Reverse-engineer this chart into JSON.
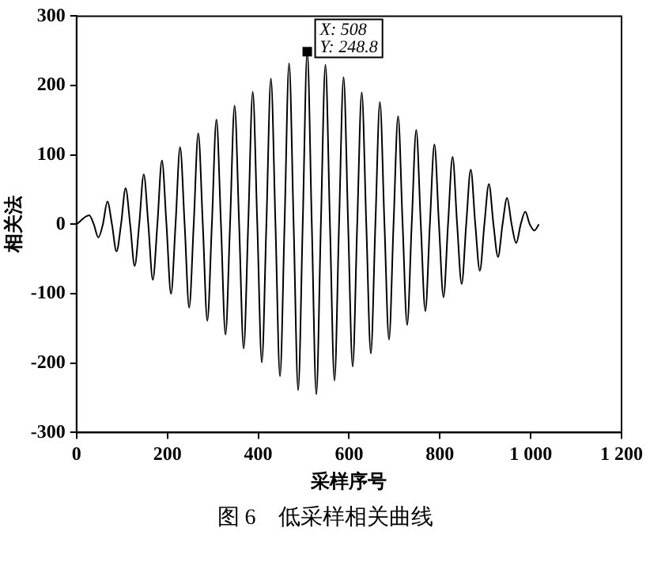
{
  "chart_data": {
    "type": "line",
    "title": "图 6　低采样相关曲线",
    "xlabel": "采样序号",
    "ylabel": "相关法",
    "x": [
      0,
      28,
      38,
      48,
      58,
      68,
      78,
      88,
      98,
      108,
      118,
      128,
      138,
      148,
      158,
      168,
      178,
      188,
      198,
      208,
      218,
      228,
      238,
      248,
      258,
      268,
      278,
      288,
      298,
      308,
      318,
      328,
      338,
      348,
      358,
      368,
      378,
      388,
      398,
      408,
      418,
      428,
      438,
      448,
      458,
      468,
      478,
      488,
      498,
      508,
      518,
      528,
      538,
      548,
      558,
      568,
      578,
      588,
      598,
      608,
      618,
      628,
      638,
      648,
      658,
      668,
      678,
      688,
      698,
      708,
      718,
      728,
      738,
      748,
      758,
      768,
      778,
      788,
      798,
      808,
      818,
      828,
      838,
      848,
      858,
      868,
      878,
      888,
      898,
      908,
      918,
      928,
      938,
      948,
      958,
      968,
      978,
      988,
      998,
      1008,
      1018
    ],
    "series": [
      {
        "color": "#000000",
        "values": [
          0,
          13,
          0,
          -19,
          0,
          33,
          0,
          -39,
          0,
          52,
          0,
          -60,
          0,
          72,
          0,
          -80,
          0,
          92,
          0,
          -100,
          0,
          111,
          0,
          -120,
          0,
          131,
          0,
          -139,
          0,
          151,
          0,
          -159,
          0,
          171,
          0,
          -179,
          0,
          191,
          0,
          -199,
          0,
          210,
          0,
          -219,
          0,
          232,
          0,
          -239,
          0,
          248.8,
          0,
          -245,
          0,
          230,
          0,
          -225,
          0,
          212,
          0,
          -205,
          0,
          190,
          0,
          -186,
          0,
          176,
          0,
          -166,
          0,
          156,
          0,
          -145,
          0,
          136,
          0,
          -125,
          0,
          115,
          0,
          -105,
          0,
          97,
          0,
          -86,
          0,
          79,
          0,
          -67,
          0,
          58,
          0,
          -47,
          0,
          38,
          0,
          -27,
          0,
          18,
          0,
          -9,
          0
        ]
      }
    ],
    "xlim": [
      0,
      1200
    ],
    "xticks": [
      0,
      200,
      400,
      600,
      800,
      {
        "value": 1000,
        "label": "1 000"
      },
      {
        "value": 1200,
        "label": "1 200"
      }
    ],
    "ylim": [
      -300,
      300
    ],
    "yticks": [
      -300,
      -200,
      -100,
      0,
      100,
      200,
      300
    ],
    "grid": false,
    "legend": false,
    "marker": "none",
    "line_style": "solid",
    "annotations": [
      {
        "text": "X: 508\nY: 248.8",
        "x": 508,
        "y": 248.8
      }
    ]
  }
}
